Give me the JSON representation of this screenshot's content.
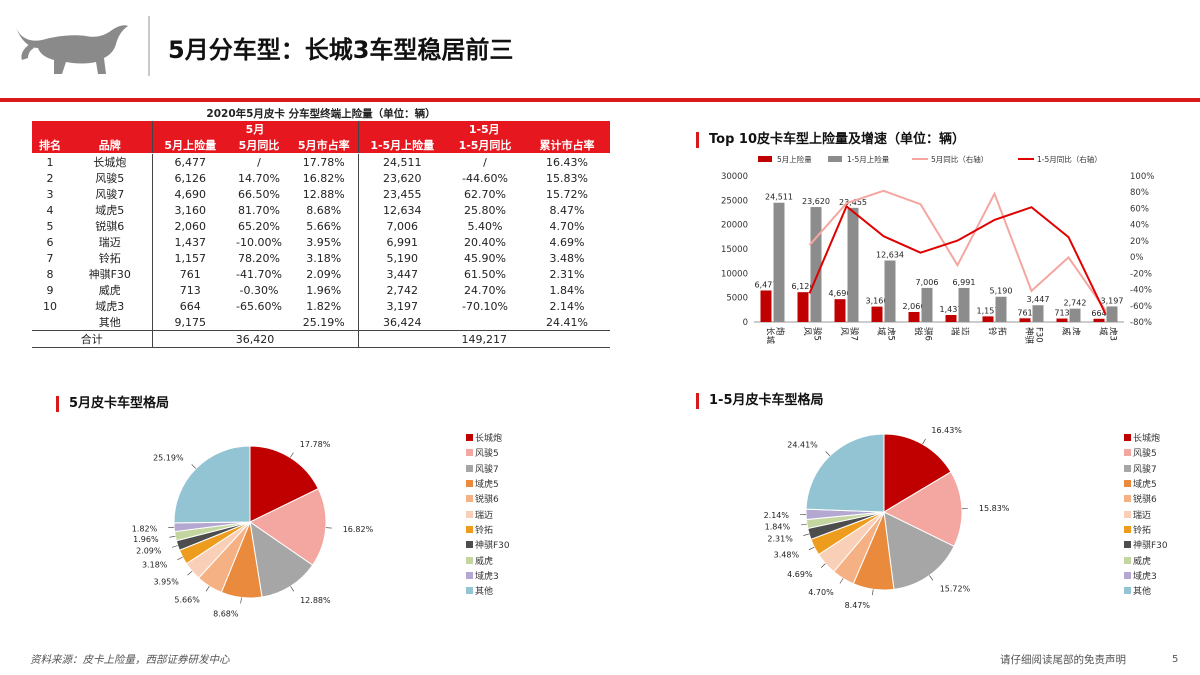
{
  "header": {
    "title": "5月分车型：长城3车型稳居前三"
  },
  "table": {
    "caption": "2020年5月皮卡 分车型终端上险量（单位：辆）",
    "group_may": "5月",
    "group_ytd": "1-5月",
    "columns": [
      "排名",
      "品牌",
      "5月上险量",
      "5月同比",
      "5月市占率",
      "1-5月上险量",
      "1-5月同比",
      "累计市占率"
    ],
    "rows": [
      [
        "1",
        "长城炮",
        "6,477",
        "/",
        "17.78%",
        "24,511",
        "/",
        "16.43%"
      ],
      [
        "2",
        "风骏5",
        "6,126",
        "14.70%",
        "16.82%",
        "23,620",
        "-44.60%",
        "15.83%"
      ],
      [
        "3",
        "风骏7",
        "4,690",
        "66.50%",
        "12.88%",
        "23,455",
        "62.70%",
        "15.72%"
      ],
      [
        "4",
        "域虎5",
        "3,160",
        "81.70%",
        "8.68%",
        "12,634",
        "25.80%",
        "8.47%"
      ],
      [
        "5",
        "锐骐6",
        "2,060",
        "65.20%",
        "5.66%",
        "7,006",
        "5.40%",
        "4.70%"
      ],
      [
        "6",
        "瑞迈",
        "1,437",
        "-10.00%",
        "3.95%",
        "6,991",
        "20.40%",
        "4.69%"
      ],
      [
        "7",
        "铃拓",
        "1,157",
        "78.20%",
        "3.18%",
        "5,190",
        "45.90%",
        "3.48%"
      ],
      [
        "8",
        "神骐F30",
        "761",
        "-41.70%",
        "2.09%",
        "3,447",
        "61.50%",
        "2.31%"
      ],
      [
        "9",
        "威虎",
        "713",
        "-0.30%",
        "1.96%",
        "2,742",
        "24.70%",
        "1.84%"
      ],
      [
        "10",
        "域虎3",
        "664",
        "-65.60%",
        "1.82%",
        "3,197",
        "-70.10%",
        "2.14%"
      ],
      [
        "",
        "其他",
        "9,175",
        "",
        "25.19%",
        "36,424",
        "",
        "24.41%"
      ]
    ],
    "total": [
      "合计",
      "36,420",
      "149,217"
    ]
  },
  "bar_title": "Top 10皮卡车型上险量及增速（单位：辆）",
  "pie1_title": "5月皮卡车型格局",
  "pie2_title": "1-5月皮卡车型格局",
  "chart_data": [
    {
      "type": "bar",
      "title": "Top 10皮卡车型上险量及增速（单位：辆）",
      "categories": [
        "长城炮",
        "风骏5",
        "风骏7",
        "域虎5",
        "锐骐6",
        "瑞迈",
        "铃拓",
        "神骐F30",
        "威虎",
        "域虎3"
      ],
      "cat_lines": [
        [
          "长城",
          "炮"
        ],
        [
          "风",
          "骏5"
        ],
        [
          "风",
          "骏7"
        ],
        [
          "域",
          "虎5"
        ],
        [
          "锐",
          "骐6"
        ],
        [
          "瑞",
          "迈"
        ],
        [
          "铃",
          "拓"
        ],
        [
          "神骐",
          "F30"
        ],
        [
          "威",
          "虎"
        ],
        [
          "域",
          "虎3"
        ]
      ],
      "ylim": [
        0,
        30000
      ],
      "y2lim": [
        -80,
        100
      ],
      "yticks": [
        "0",
        "5000",
        "10000",
        "15000",
        "20000",
        "25000",
        "30000"
      ],
      "y2ticks": [
        "-80%",
        "-60%",
        "-40%",
        "-20%",
        "0%",
        "20%",
        "40%",
        "60%",
        "80%",
        "100%"
      ],
      "bar_series": [
        {
          "name": "5月上险量",
          "color": "#c00000",
          "values": [
            6477,
            6126,
            4690,
            3160,
            2060,
            1437,
            1157,
            761,
            713,
            664
          ],
          "labels": [
            "6,477",
            "6,126",
            "4,690",
            "3,160",
            "2,060",
            "1,437",
            "1,157",
            "761",
            "713",
            "664"
          ]
        },
        {
          "name": "1-5月上险量",
          "color": "#8c8c8c",
          "values": [
            24511,
            23620,
            23455,
            12634,
            7006,
            6991,
            5190,
            3447,
            2742,
            3197
          ],
          "labels": [
            "24,511",
            "23,620",
            "23,455",
            "12,634",
            "7,006",
            "6,991",
            "5,190",
            "3,447",
            "2,742",
            "3,197"
          ]
        }
      ],
      "line_series": [
        {
          "name": "5月同比（右轴）",
          "color": "#f4a7a0",
          "values": [
            null,
            14.7,
            66.5,
            81.7,
            65.2,
            -10.0,
            78.2,
            -41.7,
            -0.3,
            -65.6
          ]
        },
        {
          "name": "1-5月同比（右轴）",
          "color": "#e00000",
          "values": [
            null,
            -44.6,
            62.7,
            25.8,
            5.4,
            20.4,
            45.9,
            61.5,
            24.7,
            -70.1
          ]
        }
      ],
      "legend_position": "top",
      "grid": false
    },
    {
      "type": "pie",
      "title": "5月皮卡车型格局",
      "labels": [
        "长城炮",
        "风骏5",
        "风骏7",
        "域虎5",
        "锐骐6",
        "瑞迈",
        "铃拓",
        "神骐F30",
        "威虎",
        "域虎3",
        "其他"
      ],
      "values": [
        17.78,
        16.82,
        12.88,
        8.68,
        5.66,
        3.95,
        3.18,
        2.09,
        1.96,
        1.82,
        25.19
      ],
      "value_labels": [
        "17.78%",
        "16.82%",
        "12.88%",
        "8.68%",
        "5.66%",
        "3.95%",
        "3.18%",
        "2.09%",
        "1.96%",
        "1.82%",
        "25.19%"
      ],
      "colors": [
        "#c00000",
        "#f4a6a0",
        "#a6a6a6",
        "#e98a3c",
        "#f5b184",
        "#f9cfb8",
        "#ee9c1e",
        "#4d4d4d",
        "#c4d6a0",
        "#b4a8d2",
        "#93c4d4"
      ],
      "legend_position": "right"
    },
    {
      "type": "pie",
      "title": "1-5月皮卡车型格局",
      "labels": [
        "长城炮",
        "风骏5",
        "风骏7",
        "域虎5",
        "锐骐6",
        "瑞迈",
        "铃拓",
        "神骐F30",
        "威虎",
        "域虎3",
        "其他"
      ],
      "values": [
        16.43,
        15.83,
        15.72,
        8.47,
        4.7,
        4.69,
        3.48,
        2.31,
        1.84,
        2.14,
        24.41
      ],
      "value_labels": [
        "16.43%",
        "15.83%",
        "15.72%",
        "8.47%",
        "4.70%",
        "4.69%",
        "3.48%",
        "2.31%",
        "1.84%",
        "2.14%",
        "24.41%"
      ],
      "colors": [
        "#c00000",
        "#f4a6a0",
        "#a6a6a6",
        "#e98a3c",
        "#f5b184",
        "#f9cfb8",
        "#ee9c1e",
        "#4d4d4d",
        "#c4d6a0",
        "#b4a8d2",
        "#93c4d4"
      ],
      "legend_position": "right"
    }
  ],
  "footer": {
    "source": "资料来源：皮卡上险量，西部证券研发中心",
    "disclaimer": "请仔细阅读尾部的免责声明",
    "page": "5"
  }
}
